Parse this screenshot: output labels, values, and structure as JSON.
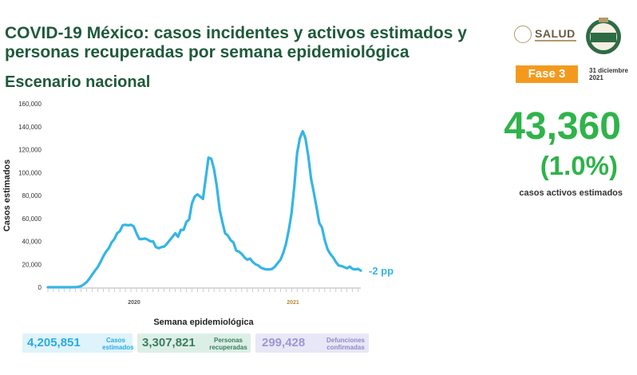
{
  "header": {
    "title": "COVID-19 México: casos incidentes y activos estimados y personas recuperadas por semana epidemiológica",
    "subtitle": "Escenario nacional",
    "logo_text": "SALUD",
    "badge": "Fase 3",
    "date": "31 diciembre 2021"
  },
  "highlight": {
    "value": "43,360",
    "percent": "(1.0%)",
    "label": "casos activos estimados"
  },
  "stats": [
    {
      "value": "4,205,851",
      "label": "Casos estimados"
    },
    {
      "value": "3,307,821",
      "label": "Personas recuperadas"
    },
    {
      "value": "299,428",
      "label": "Defunciones confirmadas"
    }
  ],
  "colors": {
    "line": "#35b5e5",
    "title": "#1f5a3b",
    "highlight": "#2fb34a",
    "badge": "#f39a1e"
  },
  "chart_data": {
    "type": "line",
    "title": "",
    "xlabel": "Semana epidemiológica",
    "ylabel": "Casos estimados",
    "ylim": [
      0,
      160000
    ],
    "yticks": [
      "0",
      "20,000",
      "40,000",
      "60,000",
      "80,000",
      "100,000",
      "120,000",
      "140,000",
      "160,000"
    ],
    "year_labels": [
      "2020",
      "2021"
    ],
    "end_annotation": "-2 pp",
    "grid": false,
    "series": [
      {
        "values": [
          0,
          0,
          0,
          0,
          0,
          0,
          0,
          0,
          0,
          0,
          100,
          400,
          1000,
          2500,
          4500,
          7500,
          11000,
          14500,
          17500,
          22000,
          27000,
          31000,
          34000,
          39000,
          42000,
          47000,
          49000,
          54000,
          54500,
          54000,
          54500,
          53000,
          47000,
          42000,
          42000,
          42500,
          41500,
          40000,
          40000,
          35000,
          34000,
          35000,
          35500,
          38000,
          41000,
          44000,
          47000,
          44000,
          50000,
          50000,
          57000,
          59000,
          73000,
          79000,
          81000,
          79000,
          77000,
          95000,
          113000,
          112000,
          103000,
          88000,
          68000,
          57000,
          47000,
          45000,
          41000,
          39000,
          32000,
          31000,
          29000,
          26000,
          24000,
          25000,
          22000,
          20000,
          19000,
          17000,
          16000,
          15500,
          15500,
          16000,
          18000,
          21000,
          24000,
          30000,
          38000,
          50000,
          65000,
          88000,
          117000,
          130000,
          136000,
          130000,
          115000,
          95000,
          83000,
          70000,
          56000,
          52000,
          41000,
          33000,
          29000,
          26000,
          22000,
          19000,
          18500,
          17500,
          16500,
          18000,
          16000,
          15500,
          16000,
          14500
        ]
      }
    ]
  }
}
